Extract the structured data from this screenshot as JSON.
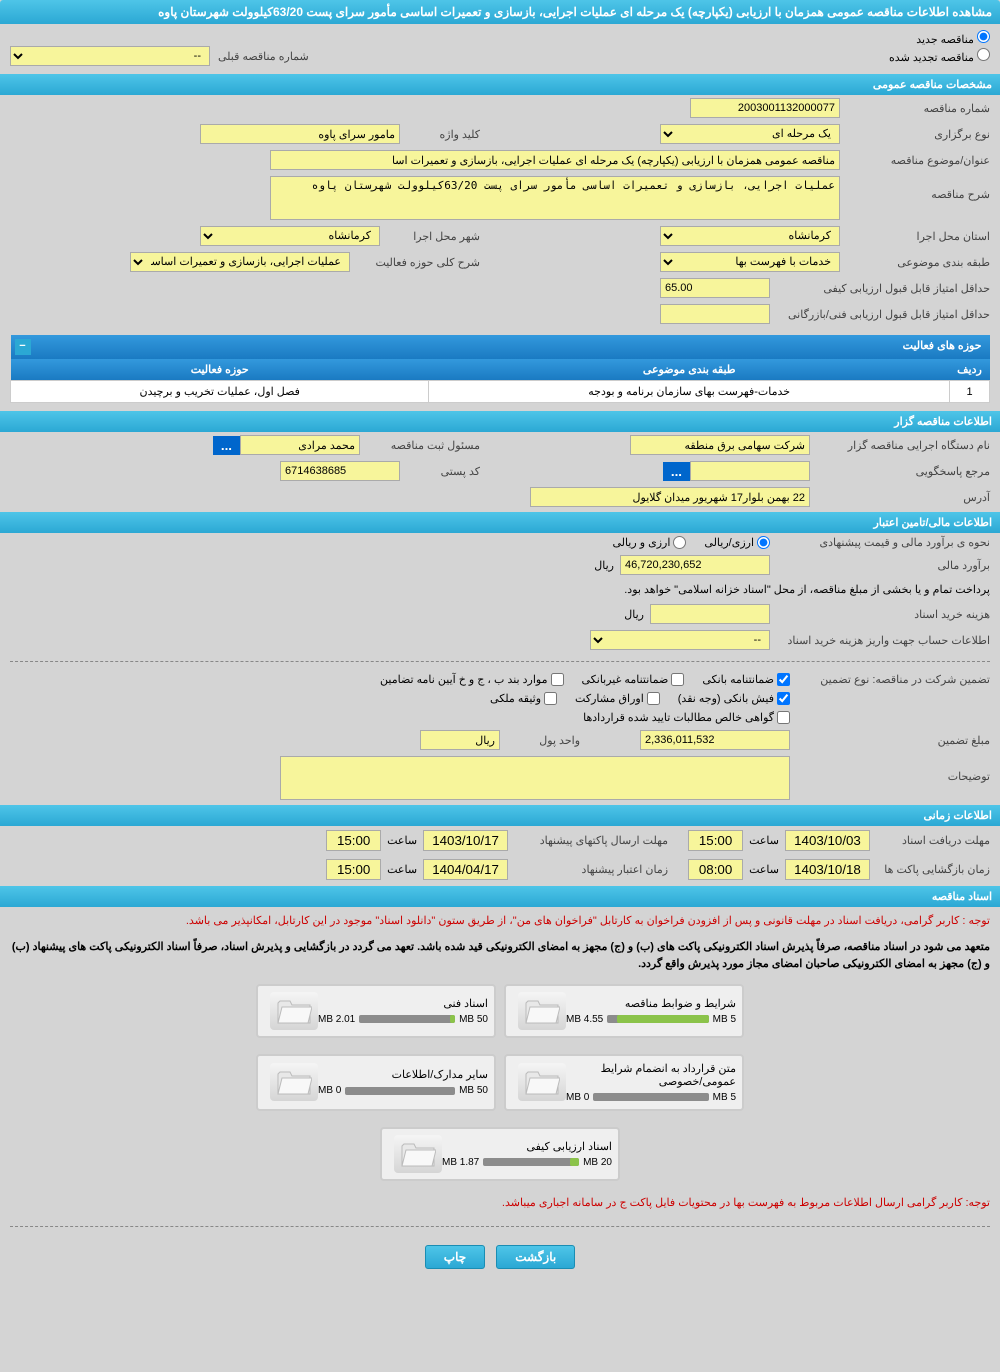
{
  "page_title": "مشاهده اطلاعات مناقصه عمومی همزمان با ارزیابی (یکپارچه) یک مرحله ای عملیات اجرایی، بازسازی و تعمیرات اساسی مأمور سرای پست 63/20کیلوولت شهرستان پاوه",
  "tender_type": {
    "new": "مناقصه جدید",
    "renewed": "مناقصه تجدید شده",
    "prev_number_label": "شماره مناقصه قبلی",
    "prev_number_value": "--"
  },
  "sections": {
    "general": "مشخصات مناقصه عمومی",
    "activity": "حوزه های فعالیت",
    "organizer": "اطلاعات مناقصه گزار",
    "financial": "اطلاعات مالی/تامین اعتبار",
    "timing": "اطلاعات زمانی",
    "documents": "اسناد مناقصه"
  },
  "general": {
    "tender_number_label": "شماره مناقصه",
    "tender_number": "2003001132000077",
    "holding_type_label": "نوع برگزاری",
    "holding_type": "یک مرحله ای",
    "keyword_label": "کلید واژه",
    "keyword": "مامور سرای پاوه",
    "title_label": "عنوان/موضوع مناقصه",
    "title": "مناقصه عمومی همزمان با ارزیابی (یکپارچه) یک مرحله ای عملیات اجرایی، بازسازی و تعمیرات اسا",
    "desc_label": "شرح مناقصه",
    "desc": "عملیات اجرایی، بازسازی و تعمیرات اساسی مأمور سرای پست 63/20کیلوولت شهرستان پاوه",
    "province_label": "استان محل اجرا",
    "province": "کرمانشاه",
    "city_label": "شهر محل اجرا",
    "city": "کرمانشاه",
    "subject_class_label": "طبقه بندی موضوعی",
    "subject_class": "خدمات با فهرست بها",
    "activity_scope_label": "شرح کلی حوزه فعالیت",
    "activity_scope": "عملیات اجرایی، بازسازی و تعمیرات اساسی مأمور",
    "min_quality_score_label": "حداقل امتیاز قابل قبول ارزیابی کیفی",
    "min_quality_score": "65.00",
    "min_tech_score_label": "حداقل امتیاز قابل قبول ارزیابی فنی/بازرگانی",
    "min_tech_score": ""
  },
  "activity_table": {
    "col_row": "ردیف",
    "col_subject": "طبقه بندی موضوعی",
    "col_scope": "حوزه فعالیت",
    "row1_num": "1",
    "row1_subject": "خدمات-فهرست بهای سازمان برنامه و بودجه",
    "row1_scope": "فصل اول، عملیات تخریب و برچیدن"
  },
  "organizer": {
    "exec_name_label": "نام دستگاه اجرایی مناقصه گزار",
    "exec_name": "شرکت سهامی برق منطقه",
    "responsible_label": "مسئول ثبت مناقصه",
    "responsible": "محمد مرادی",
    "contact_label": "مرجع پاسخگویی",
    "contact": "",
    "postal_label": "کد پستی",
    "postal": "6714638685",
    "address_label": "آدرس",
    "address": "22 بهمن بلوار17 شهریور میدان گلایول"
  },
  "financial": {
    "estimate_method_label": "نحوه ی برآورد مالی و قیمت پیشنهادی",
    "opt_rial": "ارزی/ریالی",
    "opt_currency": "ارزی و ریالی",
    "estimate_label": "برآورد مالی",
    "estimate": "46,720,230,652",
    "unit_rial": "ریال",
    "payment_note": "پرداخت تمام و یا بخشی از مبلغ مناقصه، از محل \"اسناد خزانه اسلامی\" خواهد بود.",
    "doc_cost_label": "هزینه خرید اسناد",
    "doc_cost": "",
    "account_info_label": "اطلاعات حساب جهت واریز هزینه خرید اسناد",
    "account_info": "--",
    "guarantee_type_label": "تضمین شرکت در مناقصه:   نوع تضمین",
    "cb_bank_guarantee": "ضمانتنامه بانکی",
    "cb_nonbank_guarantee": "ضمانتنامه غیربانکی",
    "cb_clauses": "موارد بند ب ، ج و خ آیین نامه تضامین",
    "cb_bank_receipt": "فیش بانکی (وجه نقد)",
    "cb_securities": "اوراق مشارکت",
    "cb_property": "وثیقه ملکی",
    "cb_certificate": "گواهی خالص مطالبات تایید شده قراردادها",
    "guarantee_amount_label": "مبلغ تضمین",
    "guarantee_amount": "2,336,011,532",
    "money_unit_label": "واحد پول",
    "money_unit": "ریال",
    "remarks_label": "توضیحات",
    "remarks": ""
  },
  "timing": {
    "receive_deadline_label": "مهلت دریافت اسناد",
    "receive_deadline_date": "1403/10/03",
    "receive_deadline_time": "15:00",
    "send_deadline_label": "مهلت ارسال پاکتهای پیشنهاد",
    "send_deadline_date": "1403/10/17",
    "send_deadline_time": "15:00",
    "opening_label": "زمان بازگشایی پاکت ها",
    "opening_date": "1403/10/18",
    "opening_time": "08:00",
    "validity_label": "زمان اعتبار پیشنهاد",
    "validity_date": "1404/04/17",
    "validity_time": "15:00",
    "time_label": "ساعت"
  },
  "documents": {
    "note1": "توجه : کاربر گرامی، دریافت اسناد در مهلت قانونی و پس از افزودن فراخوان به کارتابل \"فراخوان های من\"، از طریق ستون \"دانلود اسناد\" موجود در این کارتابل، امکانپذیر می باشد.",
    "note2": "متعهد می شود در اسناد مناقصه، صرفاً پذیرش اسناد الکترونیکی پاکت های (ب) و (ج) مجهز به امضای الکترونیکی قید شده باشد. تعهد می گردد در بازگشایی و پذیرش اسناد، صرفاً اسناد الکترونیکی پاکت های پیشنهاد (ب) و (ج) مجهز به امضای الکترونیکی صاحبان امضای مجاز مورد پذیرش واقع گردد.",
    "items": [
      {
        "title": "شرایط و ضوابط مناقصه",
        "size": "4.55 MB",
        "max": "5 MB",
        "fill": 90
      },
      {
        "title": "اسناد فنی",
        "size": "2.01 MB",
        "max": "50 MB",
        "fill": 5
      },
      {
        "title": "متن قرارداد به انضمام شرایط عمومی/خصوصی",
        "size": "0 MB",
        "max": "5 MB",
        "fill": 0
      },
      {
        "title": "سایر مدارک/اطلاعات",
        "size": "0 MB",
        "max": "50 MB",
        "fill": 0
      },
      {
        "title": "اسناد ارزیابی کیفی",
        "size": "1.87 MB",
        "max": "20 MB",
        "fill": 10
      }
    ],
    "note3": "توجه: کاربر گرامی ارسال اطلاعات مربوط به فهرست بها در محتویات فایل پاکت ج در سامانه اجباری میباشد."
  },
  "buttons": {
    "back": "بازگشت",
    "print": "چاپ"
  },
  "colors": {
    "header_bg": "#2ba8d4",
    "input_bg": "#f7f59b",
    "page_bg": "#d4d4d4",
    "bar_fill": "#8bc34a",
    "bar_bg": "#8c8c8c"
  }
}
